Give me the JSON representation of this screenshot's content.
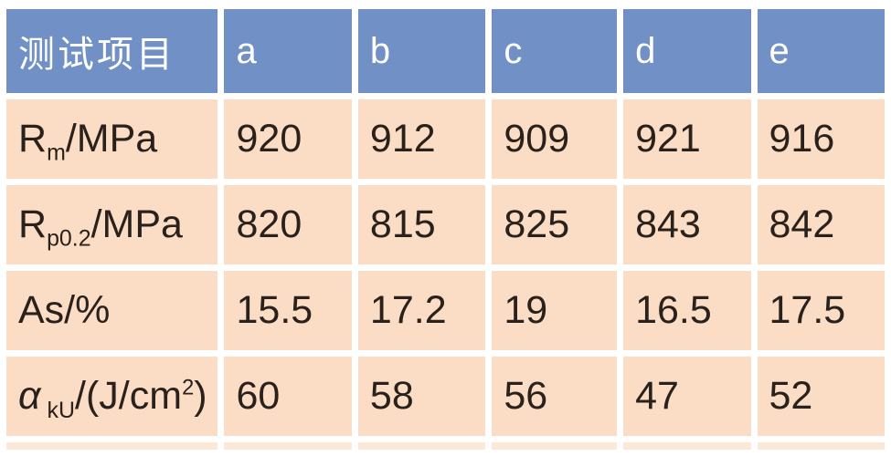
{
  "table": {
    "header": {
      "label": "测试项目",
      "columns": [
        "a",
        "b",
        "c",
        "d",
        "e"
      ]
    },
    "rows": [
      {
        "label_text": "Rm/MPa",
        "label_parts": [
          {
            "t": "R"
          },
          {
            "t": "m",
            "s": "sub"
          },
          {
            "t": "/MPa"
          }
        ],
        "values": [
          "920",
          "912",
          "909",
          "921",
          "916"
        ]
      },
      {
        "label_text": "Rp0.2/MPa",
        "label_parts": [
          {
            "t": "R"
          },
          {
            "t": "p0.2",
            "s": "sub"
          },
          {
            "t": "/MPa"
          }
        ],
        "values": [
          "820",
          "815",
          "825",
          "843",
          "842"
        ]
      },
      {
        "label_text": "As/%",
        "label_parts": [
          {
            "t": "As/%"
          }
        ],
        "values": [
          "15.5",
          "17.2",
          "19",
          "16.5",
          "17.5"
        ]
      },
      {
        "label_text": "αkU/(J/cm2)",
        "label_parts": [
          {
            "t": "α",
            "s": "italic"
          },
          {
            "t": "kU",
            "s": "sub",
            "gap": true
          },
          {
            "t": "/(J/cm"
          },
          {
            "t": "2",
            "s": "sup"
          },
          {
            "t": ")"
          }
        ],
        "values": [
          "60",
          "58",
          "56",
          "47",
          "52"
        ]
      }
    ],
    "cropped_bottom_row_visible": true
  },
  "colors": {
    "header_bg": "#7090c6",
    "header_text": "#ffffff",
    "cell_bg": "#faddc4",
    "cell_text": "#2a211c",
    "grid_gap": "#ffffff",
    "cropped_row_bg": "#fbe8d7"
  }
}
